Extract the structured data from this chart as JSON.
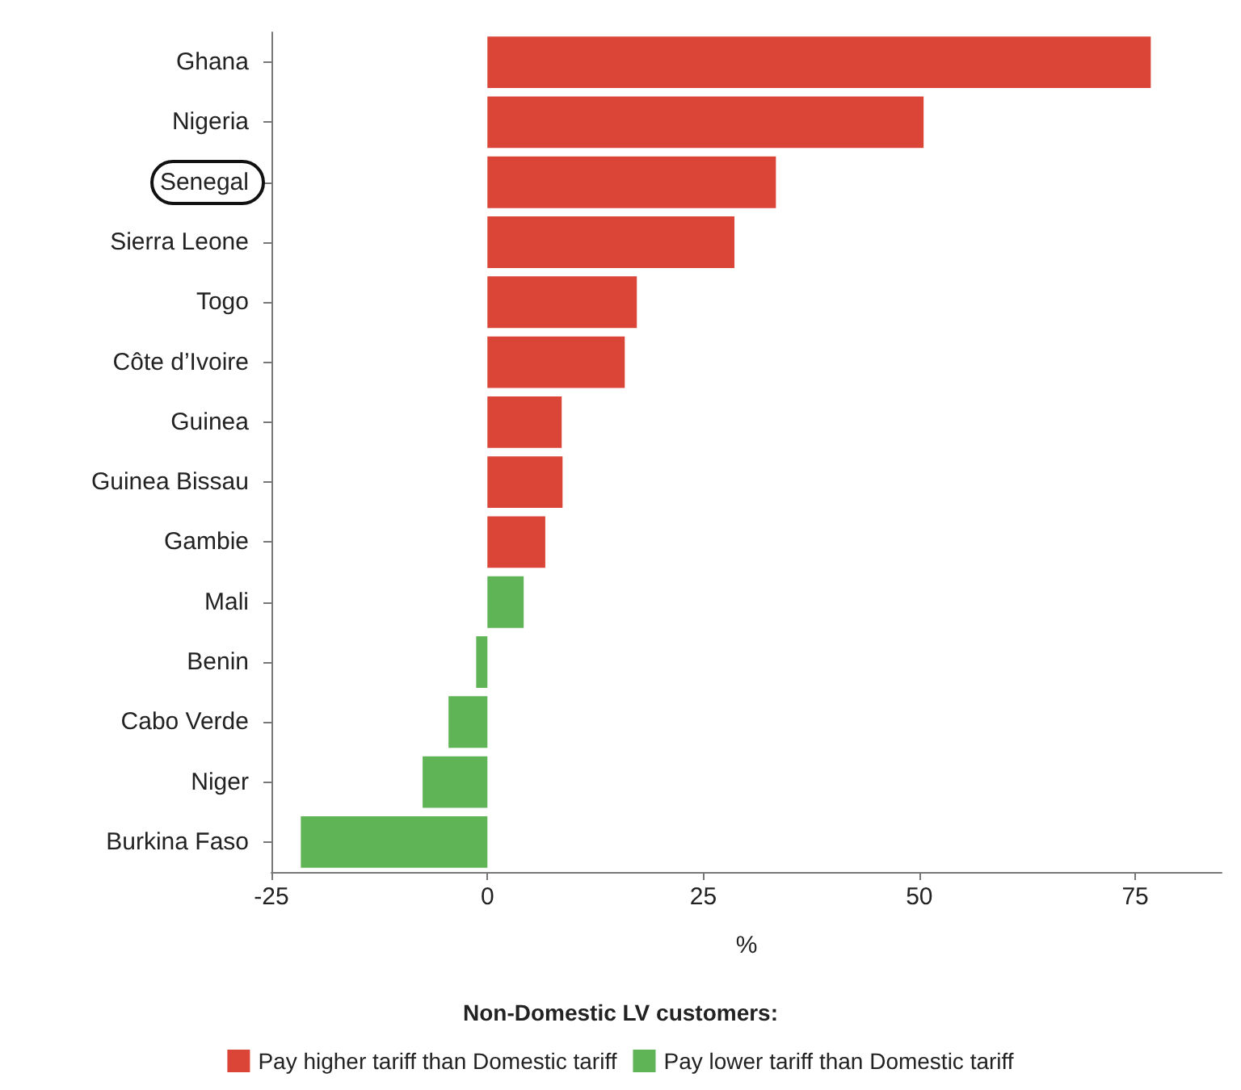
{
  "chart_data": {
    "type": "bar",
    "orientation": "horizontal",
    "xlabel": "%",
    "legend_title": "Non-Domestic LV customers:",
    "legend": "bottom",
    "grid": false,
    "categories": [
      "Ghana",
      "Nigeria",
      "Senegal",
      "Sierra Leone",
      "Togo",
      "Côte d’Ivoire",
      "Guinea",
      "Guinea Bissau",
      "Gambie",
      "Mali",
      "Benin",
      "Cabo Verde",
      "Niger",
      "Burkina Faso"
    ],
    "series": [
      {
        "name": "Pay higher tariff than Domestic tariff",
        "color": "#db4537",
        "values": [
          76.8,
          50.5,
          33.4,
          28.6,
          17.3,
          15.9,
          8.6,
          8.7,
          6.7,
          null,
          null,
          null,
          null,
          null
        ]
      },
      {
        "name": "Pay lower tariff than Domestic tariff",
        "color": "#5fb455",
        "values": [
          null,
          null,
          null,
          null,
          null,
          null,
          null,
          null,
          null,
          4.2,
          -1.3,
          -4.5,
          -7.5,
          -21.6
        ]
      }
    ],
    "xlim": [
      -25,
      85
    ],
    "xticks": [
      -25,
      0,
      25,
      50,
      75
    ]
  }
}
